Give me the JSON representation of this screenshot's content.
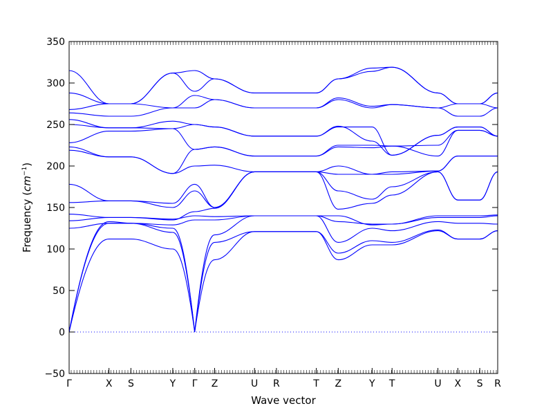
{
  "chart_data": {
    "type": "line",
    "title": "",
    "xlabel": "Wave vector",
    "ylabel_text": "Frequency (",
    "ylabel_unit": "cm",
    "ylabel_exp": "−1",
    "ylabel_close": ")",
    "ylim": [
      -50,
      350
    ],
    "yticks": [
      -50,
      0,
      50,
      100,
      150,
      200,
      250,
      300,
      350
    ],
    "xlim": [
      0,
      21.5
    ],
    "grid": false,
    "legend": "none",
    "line_color": "#0000ff",
    "zero_line_color": "#0000ff",
    "high_symmetry_points": [
      {
        "label": "Γ",
        "x": 0.0
      },
      {
        "label": "X",
        "x": 2.0
      },
      {
        "label": "S",
        "x": 3.1
      },
      {
        "label": "Y",
        "x": 5.2
      },
      {
        "label": "Γ",
        "x": 6.3
      },
      {
        "label": "Z",
        "x": 7.3
      },
      {
        "label": "U",
        "x": 9.3
      },
      {
        "label": "R",
        "x": 10.4
      },
      {
        "label": "T",
        "x": 12.4
      },
      {
        "label": "Z",
        "x": 13.5
      },
      {
        "label": "Y",
        "x": 15.2
      },
      {
        "label": "T",
        "x": 16.2
      },
      {
        "label": "U",
        "x": 18.5
      },
      {
        "label": "X",
        "x": 19.5
      },
      {
        "label": "S",
        "x": 20.6
      },
      {
        "label": "R",
        "x": 21.5
      }
    ],
    "band_values_at_points": [
      [
        0,
        112,
        112,
        100,
        0,
        87,
        121,
        121,
        121,
        87,
        105,
        105,
        122,
        112,
        112,
        122
      ],
      [
        0,
        131,
        131,
        120,
        0,
        108,
        121,
        121,
        121,
        95,
        110,
        108,
        123,
        112,
        112,
        122
      ],
      [
        0,
        133,
        131,
        125,
        0,
        117,
        140,
        140,
        140,
        108,
        125,
        122,
        133,
        131,
        131,
        130
      ],
      [
        125,
        131,
        131,
        129,
        135,
        135,
        140,
        140,
        140,
        133,
        130,
        130,
        138,
        138,
        138,
        140
      ],
      [
        134,
        138,
        138,
        136,
        140,
        139,
        140,
        140,
        140,
        140,
        129,
        130,
        140,
        140,
        140,
        141
      ],
      [
        142,
        138,
        138,
        135,
        145,
        149,
        193,
        193,
        193,
        148,
        155,
        165,
        193,
        159,
        159,
        193
      ],
      [
        156,
        158,
        158,
        150,
        170,
        150,
        193,
        193,
        193,
        170,
        160,
        175,
        193,
        159,
        159,
        193
      ],
      [
        178,
        158,
        158,
        155,
        178,
        150,
        193,
        193,
        193,
        190,
        190,
        193,
        194,
        212,
        212,
        212
      ],
      [
        219,
        211,
        211,
        191,
        200,
        201,
        193,
        193,
        193,
        200,
        190,
        190,
        194,
        212,
        212,
        212
      ],
      [
        223,
        211,
        211,
        191,
        220,
        223,
        212,
        212,
        212,
        223,
        222,
        224,
        212,
        243,
        243,
        236
      ],
      [
        228,
        242,
        242,
        245,
        220,
        223,
        212,
        212,
        212,
        225,
        225,
        224,
        225,
        243,
        243,
        236
      ],
      [
        250,
        246,
        246,
        245,
        250,
        247,
        236,
        236,
        236,
        247,
        247,
        213,
        237,
        247,
        247,
        236
      ],
      [
        256,
        246,
        246,
        254,
        250,
        247,
        236,
        236,
        236,
        248,
        230,
        213,
        237,
        247,
        247,
        236
      ],
      [
        264,
        260,
        260,
        270,
        270,
        280,
        270,
        270,
        270,
        280,
        270,
        274,
        270,
        260,
        260,
        270
      ],
      [
        268,
        275,
        275,
        270,
        285,
        280,
        270,
        270,
        270,
        282,
        272,
        274,
        270,
        275,
        275,
        270
      ],
      [
        288,
        275,
        275,
        312,
        290,
        305,
        288,
        288,
        288,
        305,
        318,
        319,
        288,
        275,
        275,
        288
      ],
      [
        315,
        275,
        275,
        312,
        315,
        305,
        288,
        288,
        288,
        305,
        314,
        319,
        288,
        275,
        275,
        288
      ]
    ]
  }
}
